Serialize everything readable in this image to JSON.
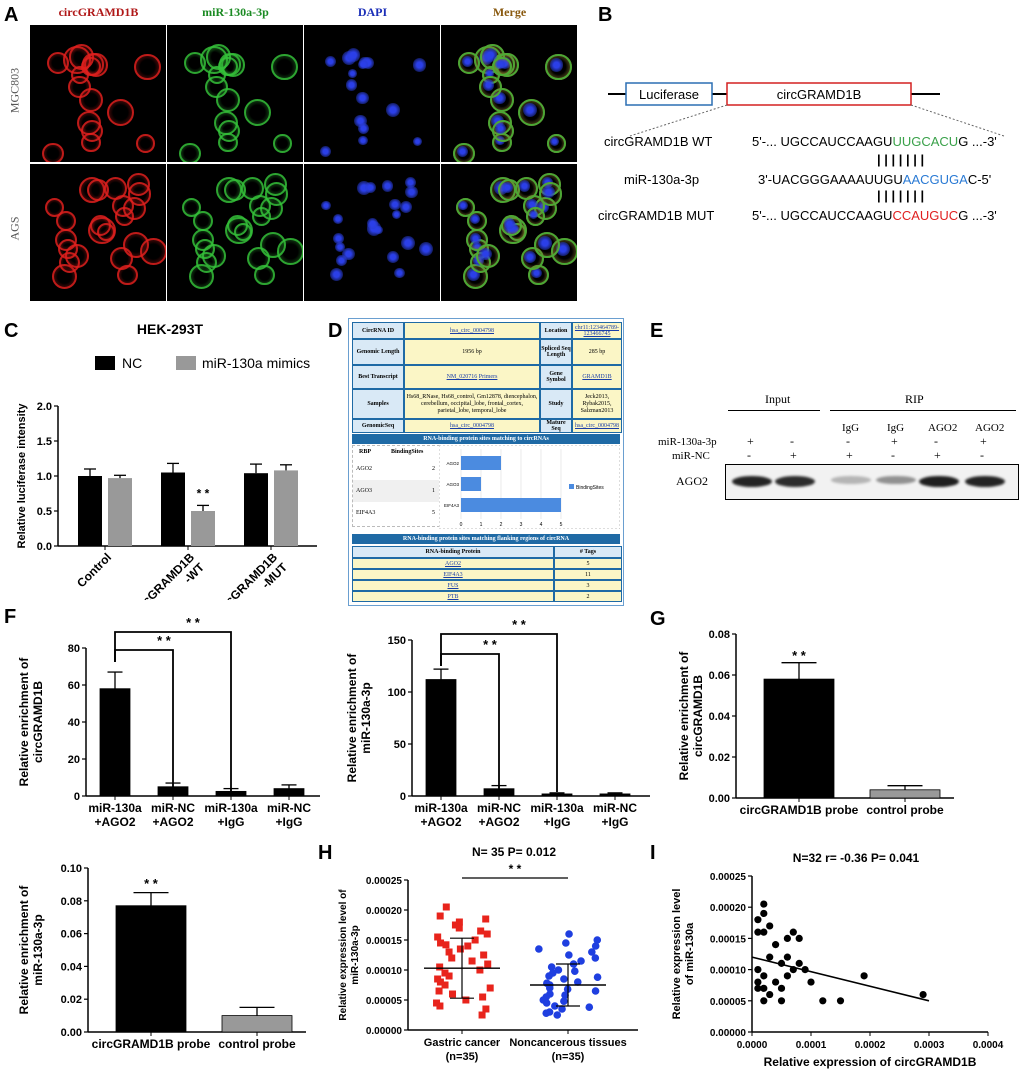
{
  "panels": {
    "A": "A",
    "B": "B",
    "C": "C",
    "D": "D",
    "E": "E",
    "F": "F",
    "G": "G",
    "H": "H",
    "I": "I"
  },
  "panelA": {
    "columns": [
      "circGRAMD1B",
      "miR-130a-3p",
      "DAPI",
      "Merge"
    ],
    "rows": [
      "MGC803",
      "AGS"
    ],
    "colors": {
      "red": "#e0201e",
      "green": "#35c13a",
      "blue": "#2b3fe8"
    }
  },
  "panelB": {
    "luciferase": "Luciferase",
    "circ": "circGRAMD1B",
    "rows": [
      {
        "label": "circGRAMD1B WT",
        "pre": "5'-... UGCCAUCCAAGU",
        "mid": "UUGCACU",
        "post": "G ...-3'",
        "midColor": "#3aa14a"
      },
      {
        "label": "miR-130a-3p",
        "pre": "3'-UACGGGAAAAUUGU",
        "mid": "AACGUGA",
        "post": "C-5'",
        "midColor": "#2a7ad4"
      },
      {
        "label": "circGRAMD1B MUT",
        "pre": "5'-... UGCCAUCCAAGU",
        "mid": "CCAUGUC",
        "post": "G ...-3'",
        "midColor": "#e02020"
      }
    ],
    "pairing": "| | | | | | |"
  },
  "panelD": {
    "header": {
      "circ_id": "CircRNA ID",
      "circ_id_val": "hsa_circ_0004798",
      "location": "Location",
      "location_val": "chr11:123464789-123466745",
      "glen": "Genomic Length",
      "glen_val": "1956 bp",
      "slen": "Spliced Seq Length",
      "slen_val": "285 bp",
      "bt": "Best Transcript",
      "bt_val": "NM_020716",
      "primers": "Primers",
      "gs": "Gene Symbol",
      "gs_val": "GRAMD1B",
      "samples": "Samples",
      "samples_val": "Hs68_RNase, Hs68_control, Gm12878, diencephalon, cerebellum, occipital_lobe, frontal_cortex, parietal_lobe, temporal_lobe",
      "study": "Study",
      "study_val": "Jeck2013, Rybak2015, Salzman2013",
      "gseq": "GenomicSeq",
      "gseq_val": "hsa_circ_0004798",
      "mseq": "Mature Seq",
      "mseq_val": "hsa_circ_0004798"
    },
    "rbp_title": "RNA-binding protein sites matching to circRNAs",
    "rbp_col": "RBP",
    "bs_col": "BindingSites",
    "rbp_rows": [
      {
        "name": "AGO2",
        "val": "2"
      },
      {
        "name": "AGO3",
        "val": "1"
      },
      {
        "name": "EIF4A3",
        "val": "5"
      }
    ],
    "legend": "BindingSites",
    "chart_ticks": [
      "0",
      "1",
      "2",
      "3",
      "4",
      "5"
    ],
    "flank_title": "RNA-binding protein sites matching flanking regions of circRNA",
    "flank_cols": [
      "RNA-binding Protein",
      "# Tags"
    ],
    "flank_rows": [
      {
        "name": "AGO2",
        "val": "5"
      },
      {
        "name": "EIF4A3",
        "val": "11"
      },
      {
        "name": "FUS",
        "val": "3"
      },
      {
        "name": "PTB",
        "val": "2"
      }
    ]
  },
  "panelE": {
    "input": "Input",
    "rip": "RIP",
    "lanes": [
      "IgG",
      "IgG",
      "AGO2",
      "AGO2"
    ],
    "row1_label": "miR-130a-3p",
    "row2_label": "miR-NC",
    "row1": [
      "+",
      "-",
      "-",
      "+",
      "-",
      "+"
    ],
    "row2": [
      "-",
      "+",
      "+",
      "-",
      "+",
      "-"
    ],
    "band": "AGO2",
    "band_intensity": [
      0.85,
      0.82,
      0.25,
      0.4,
      0.88,
      0.85
    ]
  },
  "chart_data": [
    {
      "id": "C",
      "type": "bar",
      "title": "HEK-293T",
      "ylabel": "Relative luciferase intensity",
      "categories": [
        "Control",
        "circGRAMD1B\n-WT",
        "circGRAMD1B\n-MUT"
      ],
      "ylim": [
        0,
        2.0
      ],
      "yticks": [
        "0.0",
        "0.5",
        "1.0",
        "1.5",
        "2.0"
      ],
      "series": [
        {
          "name": "NC",
          "color": "#000000",
          "values": [
            1.0,
            1.05,
            1.04
          ],
          "err": [
            0.1,
            0.13,
            0.13
          ]
        },
        {
          "name": "miR-130a mimics",
          "color": "#999999",
          "values": [
            0.97,
            0.5,
            1.08
          ],
          "err": [
            0.04,
            0.08,
            0.08
          ]
        }
      ],
      "annotations": [
        "* *"
      ]
    },
    {
      "id": "F1",
      "type": "bar",
      "ylabel": "Relative enrichment of circGRAMD1B",
      "categories": [
        "miR-130a +AGO2",
        "miR-NC +AGO2",
        "miR-130a +IgG",
        "miR-NC +IgG"
      ],
      "ylim": [
        0,
        80
      ],
      "yticks": [
        "0",
        "20",
        "40",
        "60",
        "80"
      ],
      "values": [
        58,
        5,
        2.5,
        4
      ],
      "err": [
        9,
        2,
        1.5,
        2
      ],
      "annotations": [
        "* *",
        "* *"
      ]
    },
    {
      "id": "F2",
      "type": "bar",
      "ylabel": "Relative enrichment of miR-130a-3p",
      "categories": [
        "miR-130a +AGO2",
        "miR-NC +AGO2",
        "miR-130a +IgG",
        "miR-NC +IgG"
      ],
      "ylim": [
        0,
        150
      ],
      "yticks": [
        "0",
        "50",
        "100",
        "150"
      ],
      "values": [
        112,
        7,
        2,
        2
      ],
      "err": [
        10,
        3,
        1,
        1
      ],
      "annotations": [
        "* *",
        "* *"
      ]
    },
    {
      "id": "G",
      "type": "bar",
      "ylabel": "Relative enrichment of circGRAMD1B",
      "categories": [
        "circGRAMD1B probe",
        "control probe"
      ],
      "ylim": [
        0,
        0.08
      ],
      "yticks": [
        "0.00",
        "0.02",
        "0.04",
        "0.06",
        "0.08"
      ],
      "values": [
        0.058,
        0.004
      ],
      "err": [
        0.008,
        0.002
      ],
      "colors": [
        "#000000",
        "#999999"
      ],
      "annotations": [
        "* *"
      ]
    },
    {
      "id": "F3",
      "type": "bar",
      "ylabel": "Relative enrichment of miR-130a-3p",
      "categories": [
        "circGRAMD1B probe",
        "control probe"
      ],
      "ylim": [
        0,
        0.1
      ],
      "yticks": [
        "0.00",
        "0.02",
        "0.04",
        "0.06",
        "0.08",
        "0.10"
      ],
      "values": [
        0.077,
        0.01
      ],
      "err": [
        0.008,
        0.005
      ],
      "colors": [
        "#000000",
        "#999999"
      ],
      "annotations": [
        "* *"
      ]
    },
    {
      "id": "H",
      "type": "scatter",
      "title": "N= 35 P= 0.012",
      "ylabel": "Relative expression level of miR-130a-3p",
      "categories": [
        "Gastric cancer (n=35)",
        "Noncancerous tissues (n=35)"
      ],
      "ylim": [
        0,
        0.00025
      ],
      "yticks": [
        "0.00000",
        "0.00005",
        "0.00010",
        "0.00015",
        "0.00020",
        "0.00025"
      ],
      "series": [
        {
          "name": "Gastric cancer",
          "color": "#e8241c",
          "marker": "square",
          "mean": 0.000103,
          "sd": 5e-05,
          "values": [
            0.000205,
            0.00019,
            0.000185,
            0.00018,
            0.000175,
            0.00017,
            0.000165,
            0.00016,
            0.000155,
            0.00015,
            0.000145,
            0.000142,
            0.00014,
            0.000135,
            0.00013,
            0.000125,
            0.00012,
            0.000115,
            0.00011,
            0.000105,
            0.0001,
            9.5e-05,
            9e-05,
            8.5e-05,
            8e-05,
            7.5e-05,
            7e-05,
            6.5e-05,
            6e-05,
            5.5e-05,
            5e-05,
            4.5e-05,
            4e-05,
            3.5e-05,
            2.5e-05
          ]
        },
        {
          "name": "Noncancerous tissues",
          "color": "#1f3fe0",
          "marker": "circle",
          "mean": 7.5e-05,
          "sd": 3.5e-05,
          "values": [
            0.00016,
            0.00015,
            0.000145,
            0.00014,
            0.000135,
            0.00013,
            0.000125,
            0.00012,
            0.000115,
            0.00011,
            0.000105,
            0.0001,
            9.8e-05,
            9.5e-05,
            9e-05,
            8.8e-05,
            8.5e-05,
            8e-05,
            7.8e-05,
            7.5e-05,
            7e-05,
            6.8e-05,
            6.5e-05,
            6e-05,
            5.8e-05,
            5.5e-05,
            5e-05,
            4.8e-05,
            4.5e-05,
            4e-05,
            3.8e-05,
            3.5e-05,
            3e-05,
            2.8e-05,
            2.5e-05
          ]
        }
      ],
      "annotations": [
        "* *"
      ]
    },
    {
      "id": "I",
      "type": "scatter",
      "title": "N=32 r= -0.36 P= 0.041",
      "xlabel": "Relative expression of circGRAMD1B",
      "ylabel": "Relative expression level of miR-130a",
      "xlim": [
        0,
        0.0004
      ],
      "ylim": [
        0,
        0.00025
      ],
      "xticks": [
        "0.0000",
        "0.0001",
        "0.0002",
        "0.0003",
        "0.0004"
      ],
      "yticks": [
        "0.00000",
        "0.00005",
        "0.00010",
        "0.00015",
        "0.00020",
        "0.00025"
      ],
      "points": [
        [
          1e-05,
          0.00018
        ],
        [
          1e-05,
          0.00016
        ],
        [
          2e-05,
          0.000205
        ],
        [
          2e-05,
          0.00019
        ],
        [
          2e-05,
          0.00016
        ],
        [
          3e-05,
          0.00017
        ],
        [
          1e-05,
          0.0001
        ],
        [
          2e-05,
          9e-05
        ],
        [
          1e-05,
          8e-05
        ],
        [
          2e-05,
          7e-05
        ],
        [
          3e-05,
          0.00012
        ],
        [
          4e-05,
          0.00014
        ],
        [
          5e-05,
          0.00011
        ],
        [
          6e-05,
          0.00015
        ],
        [
          7e-05,
          0.00016
        ],
        [
          8e-05,
          0.00015
        ],
        [
          6e-05,
          0.00012
        ],
        [
          7e-05,
          0.0001
        ],
        [
          8e-05,
          0.00011
        ],
        [
          9e-05,
          0.0001
        ],
        [
          4e-05,
          8e-05
        ],
        [
          5e-05,
          7e-05
        ],
        [
          6e-05,
          9e-05
        ],
        [
          3e-05,
          6e-05
        ],
        [
          5e-05,
          5e-05
        ],
        [
          0.0001,
          8e-05
        ],
        [
          0.00012,
          5e-05
        ],
        [
          0.00015,
          5e-05
        ],
        [
          0.00019,
          9e-05
        ],
        [
          0.00029,
          6e-05
        ],
        [
          2e-05,
          5e-05
        ],
        [
          1e-05,
          7e-05
        ]
      ],
      "fit": [
        [
          0,
          0.00012
        ],
        [
          0.0003,
          5e-05
        ]
      ]
    }
  ]
}
